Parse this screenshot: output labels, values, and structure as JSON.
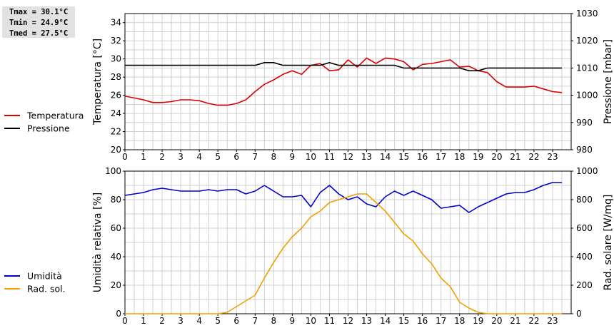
{
  "stats": {
    "tmax": "Tmax = 30.1°C",
    "tmin": "Tmin = 24.9°C",
    "tmed": "Tmed = 27.5°C"
  },
  "colors": {
    "temperatura": "#dd0000",
    "pressione": "#000000",
    "umidita": "#0000cc",
    "radiazione": "#f0a000",
    "grid": "#d0d0d0"
  },
  "chart_data": [
    {
      "type": "line",
      "x_ticks": [
        "0",
        "1",
        "2",
        "3",
        "4",
        "5",
        "6",
        "7",
        "8",
        "9",
        "10",
        "11",
        "12",
        "13",
        "14",
        "15",
        "16",
        "17",
        "18",
        "19",
        "20",
        "21",
        "22",
        "23"
      ],
      "ylabel_left": "Temperatura [°C]",
      "ylabel_right": "Pressione [mbar]",
      "ylim_left": [
        20,
        35
      ],
      "yticks_left": [
        "20",
        "22",
        "24",
        "26",
        "28",
        "30",
        "32",
        "34"
      ],
      "ylim_right": [
        980,
        1030
      ],
      "yticks_right": [
        "980",
        "990",
        "1000",
        "1010",
        "1020",
        "1030"
      ],
      "grid": true,
      "legend_position": "left",
      "series": [
        {
          "name": "Temperatura",
          "axis": "left",
          "x": [
            0,
            0.5,
            1,
            1.5,
            2,
            2.5,
            3,
            3.5,
            4,
            4.5,
            5,
            5.5,
            6,
            6.5,
            7,
            7.5,
            8,
            8.5,
            9,
            9.5,
            10,
            10.5,
            11,
            11.5,
            12,
            12.5,
            13,
            13.5,
            14,
            14.5,
            15,
            15.5,
            16,
            16.5,
            17,
            17.5,
            18,
            18.5,
            19,
            19.5,
            20,
            20.5,
            21,
            21.5,
            22,
            22.5,
            23,
            23.5
          ],
          "y": [
            25.9,
            25.7,
            25.5,
            25.2,
            25.2,
            25.3,
            25.5,
            25.5,
            25.4,
            25.1,
            24.9,
            24.9,
            25.1,
            25.5,
            26.4,
            27.2,
            27.7,
            28.3,
            28.7,
            28.3,
            29.3,
            29.5,
            28.7,
            28.8,
            29.9,
            29.1,
            30.1,
            29.5,
            30.1,
            30.0,
            29.7,
            28.8,
            29.4,
            29.5,
            29.7,
            29.9,
            29.1,
            29.2,
            28.7,
            28.5,
            27.5,
            26.9,
            26.9,
            26.9,
            27.0,
            26.7,
            26.4,
            26.3
          ]
        },
        {
          "name": "Pressione",
          "axis": "right",
          "x": [
            0,
            0.5,
            1,
            1.5,
            2,
            2.5,
            3,
            3.5,
            4,
            4.5,
            5,
            5.5,
            6,
            6.5,
            7,
            7.5,
            8,
            8.5,
            9,
            9.5,
            10,
            10.5,
            11,
            11.5,
            12,
            12.5,
            13,
            13.5,
            14,
            14.5,
            15,
            15.5,
            16,
            16.5,
            17,
            17.5,
            18,
            18.5,
            19,
            19.5,
            20,
            20.5,
            21,
            21.5,
            22,
            22.5,
            23,
            23.5
          ],
          "y": [
            1011,
            1011,
            1011,
            1011,
            1011,
            1011,
            1011,
            1011,
            1011,
            1011,
            1011,
            1011,
            1011,
            1011,
            1011,
            1012,
            1012,
            1011,
            1011,
            1011,
            1011,
            1011,
            1012,
            1011,
            1011,
            1011,
            1011,
            1011,
            1011,
            1011,
            1010,
            1010,
            1010,
            1010,
            1010,
            1010,
            1010,
            1009,
            1009,
            1010,
            1010,
            1010,
            1010,
            1010,
            1010,
            1010,
            1010,
            1010
          ]
        }
      ]
    },
    {
      "type": "line",
      "x_ticks": [
        "0",
        "1",
        "2",
        "3",
        "4",
        "5",
        "6",
        "7",
        "8",
        "9",
        "10",
        "11",
        "12",
        "13",
        "14",
        "15",
        "16",
        "17",
        "18",
        "19",
        "20",
        "21",
        "22",
        "23"
      ],
      "ylabel_left": "Umidità relativa [%]",
      "ylabel_right": "Rad. solare [W/mq]",
      "ylim_left": [
        0,
        100
      ],
      "yticks_left": [
        "0",
        "20",
        "40",
        "60",
        "80",
        "100"
      ],
      "ylim_right": [
        0,
        1000
      ],
      "yticks_right": [
        "0",
        "200",
        "400",
        "600",
        "800",
        "1000"
      ],
      "grid": true,
      "legend_position": "left",
      "series": [
        {
          "name": "Umidità",
          "axis": "left",
          "x": [
            0,
            0.5,
            1,
            1.5,
            2,
            2.5,
            3,
            3.5,
            4,
            4.5,
            5,
            5.5,
            6,
            6.5,
            7,
            7.5,
            8,
            8.5,
            9,
            9.5,
            10,
            10.5,
            11,
            11.5,
            12,
            12.5,
            13,
            13.5,
            14,
            14.5,
            15,
            15.5,
            16,
            16.5,
            17,
            17.5,
            18,
            18.5,
            19,
            19.5,
            20,
            20.5,
            21,
            21.5,
            22,
            22.5,
            23,
            23.5
          ],
          "y": [
            83,
            84,
            85,
            87,
            88,
            87,
            86,
            86,
            86,
            87,
            86,
            87,
            87,
            84,
            86,
            90,
            86,
            82,
            82,
            83,
            75,
            85,
            90,
            84,
            80,
            82,
            77,
            75,
            82,
            86,
            83,
            86,
            83,
            80,
            74,
            75,
            76,
            71,
            75,
            78,
            81,
            84,
            85,
            85,
            87,
            90,
            92,
            92
          ]
        },
        {
          "name": "Rad. sol.",
          "axis": "right",
          "x": [
            0,
            0.5,
            1,
            1.5,
            2,
            2.5,
            3,
            3.5,
            4,
            4.5,
            5,
            5.5,
            6,
            6.5,
            7,
            7.5,
            8,
            8.5,
            9,
            9.5,
            10,
            10.5,
            11,
            11.5,
            12,
            12.5,
            13,
            13.5,
            14,
            14.5,
            15,
            15.5,
            16,
            16.5,
            17,
            17.5,
            18,
            18.5,
            19,
            19.5,
            20,
            20.5,
            21,
            21.5,
            22,
            22.5,
            23,
            23.5
          ],
          "y": [
            0,
            0,
            0,
            0,
            0,
            0,
            0,
            0,
            0,
            0,
            0,
            10,
            50,
            90,
            130,
            250,
            360,
            460,
            540,
            600,
            680,
            720,
            780,
            800,
            820,
            840,
            840,
            780,
            720,
            640,
            560,
            510,
            420,
            350,
            250,
            190,
            80,
            40,
            10,
            0,
            0,
            0,
            0,
            0,
            0,
            0,
            0,
            0
          ]
        }
      ]
    }
  ]
}
